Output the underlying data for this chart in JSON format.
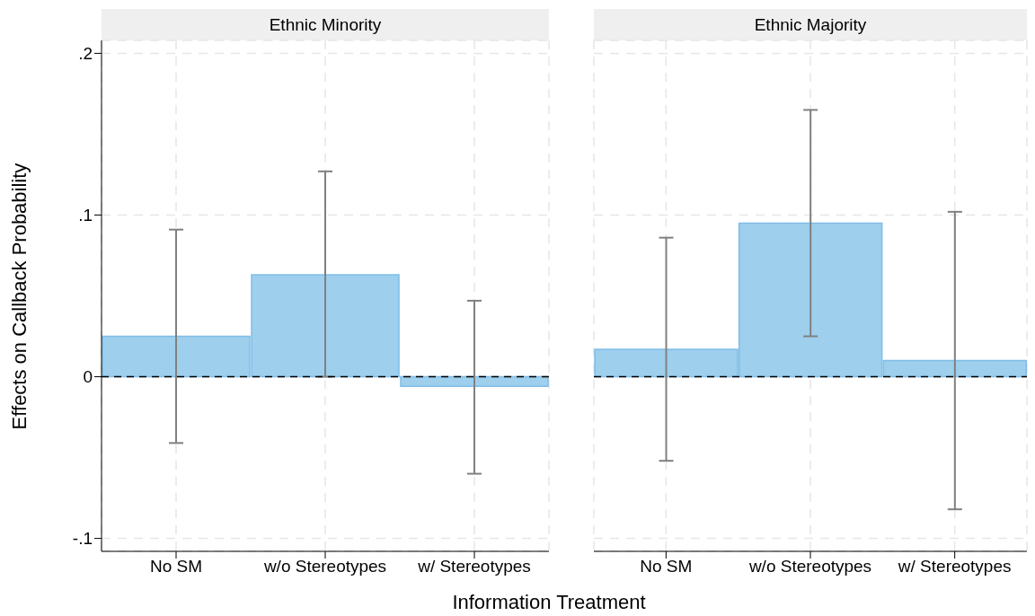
{
  "chart_data": [
    {
      "type": "bar",
      "title": "Ethnic Minority",
      "ylabel": "Effects on Callback Probability",
      "xlabel": "Information Treatment",
      "categories": [
        "No SM",
        "w/o Stereotypes",
        "w/ Stereotypes"
      ],
      "series": [
        {
          "color": "#9ecfed",
          "values": [
            0.025,
            0.063,
            -0.006
          ],
          "errors": [
            [
              -0.041,
              0.091
            ],
            [
              0.0,
              0.127
            ],
            [
              -0.06,
              0.047
            ]
          ]
        }
      ],
      "ylim": [
        -0.108,
        0.208
      ],
      "yticks": [
        {
          "value": -0.1,
          "label": "-.1"
        },
        0,
        {
          "value": 0.1,
          "label": ".1"
        },
        {
          "value": 0.2,
          "label": ".2"
        }
      ],
      "grid": true,
      "ref_lines": [
        {
          "axis": "y",
          "value": 0,
          "color": "#000000",
          "line_style": "dashed"
        }
      ]
    },
    {
      "type": "bar",
      "title": "Ethnic Majority",
      "categories": [
        "No SM",
        "w/o Stereotypes",
        "w/ Stereotypes"
      ],
      "series": [
        {
          "color": "#9ecfed",
          "values": [
            0.017,
            0.095,
            0.01
          ],
          "errors": [
            [
              -0.052,
              0.086
            ],
            [
              0.025,
              0.165
            ],
            [
              -0.082,
              0.102
            ]
          ]
        }
      ],
      "ylim": [
        -0.108,
        0.208
      ],
      "yticks": [
        -0.1,
        0,
        0.1,
        0.2
      ],
      "grid": true,
      "tick_labels": "x",
      "ref_lines": [
        {
          "axis": "y",
          "value": 0,
          "color": "#000000",
          "line_style": "dashed"
        }
      ]
    }
  ]
}
